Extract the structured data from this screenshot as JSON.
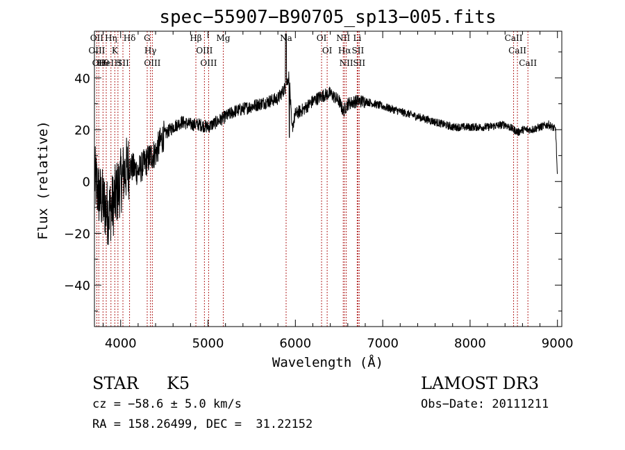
{
  "chart_data": {
    "type": "line",
    "title": "spec−55907−B90705_sp13−005.fits",
    "xlabel": "Wavelength (Å)",
    "ylabel": "Flux (relative)",
    "xlim": [
      3700,
      9050
    ],
    "ylim": [
      -56,
      58
    ],
    "xticks": [
      {
        "value": 4000,
        "label": "4000"
      },
      {
        "value": 5000,
        "label": "5000"
      },
      {
        "value": 6000,
        "label": "6000"
      },
      {
        "value": 7000,
        "label": "7000"
      },
      {
        "value": 8000,
        "label": "8000"
      },
      {
        "value": 9000,
        "label": "9000"
      }
    ],
    "yticks": [
      {
        "value": 40,
        "label": "40"
      },
      {
        "value": 20,
        "label": "20"
      },
      {
        "value": 0,
        "label": "0"
      },
      {
        "value": -20,
        "label": "−20"
      },
      {
        "value": -40,
        "label": "−40"
      }
    ],
    "spectrum_envelope": {
      "x": [
        3700,
        3750,
        3800,
        3850,
        3900,
        3950,
        4000,
        4050,
        4100,
        4150,
        4200,
        4250,
        4300,
        4350,
        4400,
        4450,
        4500,
        4600,
        4700,
        4800,
        4900,
        5000,
        5100,
        5200,
        5300,
        5400,
        5500,
        5600,
        5700,
        5800,
        5880,
        5930,
        5960,
        6000,
        6100,
        6200,
        6300,
        6400,
        6500,
        6550,
        6600,
        6700,
        6800,
        6900,
        7000,
        7200,
        7400,
        7600,
        7800,
        8000,
        8200,
        8400,
        8500,
        8550,
        8600,
        8700,
        8800,
        8900,
        8980,
        9000
      ],
      "y": [
        2,
        -5,
        -8,
        -12,
        -10,
        -5,
        0,
        4,
        6,
        5,
        4,
        6,
        8,
        10,
        11,
        15,
        18,
        21,
        23,
        22,
        22,
        21,
        23,
        25,
        27,
        28,
        29,
        30,
        31,
        32,
        36,
        41,
        20,
        26,
        28,
        31,
        33,
        34,
        31,
        27,
        30,
        31,
        31,
        30,
        29,
        27,
        25,
        23,
        21,
        21,
        21,
        22,
        20,
        19,
        20,
        20,
        21,
        22,
        20,
        1
      ]
    },
    "spectral_lines": [
      {
        "wavelength": 3727,
        "labels": [
          "OII",
          "OIII"
        ]
      },
      {
        "wavelength": 3750,
        "labels": [
          "OII"
        ]
      },
      {
        "wavelength": 3798,
        "labels": [
          "Hθ"
        ]
      },
      {
        "wavelength": 3835,
        "labels": [
          "HeI"
        ]
      },
      {
        "wavelength": 3889,
        "labels": [
          "Hη"
        ]
      },
      {
        "wavelength": 3933,
        "labels": [
          "K"
        ]
      },
      {
        "wavelength": 3969,
        "labels": [
          "H"
        ]
      },
      {
        "wavelength": 4026,
        "labels": [
          "SII"
        ]
      },
      {
        "wavelength": 4102,
        "labels": [
          "Hδ"
        ]
      },
      {
        "wavelength": 4304,
        "labels": [
          "G"
        ]
      },
      {
        "wavelength": 4341,
        "labels": [
          "Hγ"
        ]
      },
      {
        "wavelength": 4363,
        "labels": [
          "OIII"
        ]
      },
      {
        "wavelength": 4861,
        "labels": [
          "Hβ"
        ]
      },
      {
        "wavelength": 4959,
        "labels": [
          "OIII"
        ]
      },
      {
        "wavelength": 5007,
        "labels": [
          "OIII"
        ]
      },
      {
        "wavelength": 5175,
        "labels": [
          "Mg"
        ]
      },
      {
        "wavelength": 5894,
        "labels": [
          "Na"
        ]
      },
      {
        "wavelength": 6300,
        "labels": [
          "OI"
        ]
      },
      {
        "wavelength": 6364,
        "labels": [
          "OI"
        ]
      },
      {
        "wavelength": 6548,
        "labels": [
          "NII"
        ]
      },
      {
        "wavelength": 6563,
        "labels": [
          "Hα"
        ]
      },
      {
        "wavelength": 6583,
        "labels": [
          "NII"
        ]
      },
      {
        "wavelength": 6708,
        "labels": [
          "Li"
        ]
      },
      {
        "wavelength": 6716,
        "labels": [
          "SII"
        ]
      },
      {
        "wavelength": 6731,
        "labels": [
          "SII"
        ]
      },
      {
        "wavelength": 8498,
        "labels": [
          "CaII"
        ]
      },
      {
        "wavelength": 8542,
        "labels": [
          "CaII"
        ]
      },
      {
        "wavelength": 8662,
        "labels": [
          "CaII"
        ]
      }
    ],
    "line_color": "#000000",
    "marker_color": "#b22222"
  },
  "info": {
    "object_class": "STAR",
    "subclass": "K5",
    "survey": "LAMOST DR3",
    "cz": "cz = −58.6 ± 5.0 km/s",
    "obs_date": "Obs−Date: 20111211",
    "coords": "RA = 158.26499, DEC =  31.22152"
  }
}
